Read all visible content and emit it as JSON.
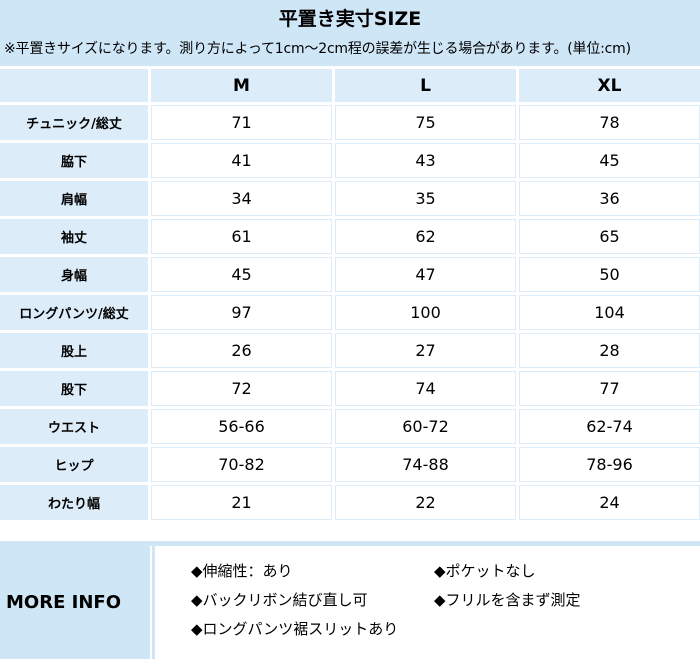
{
  "title": "平置き実寸SIZE",
  "note": "※平置きサイズになります。測り方によって1cm〜2cm程の誤差が生じる場合があります。(単位:cm)",
  "columns": [
    "M",
    "L",
    "XL"
  ],
  "rows": [
    {
      "label": "チュニック/総丈",
      "values": [
        "71",
        "75",
        "78"
      ]
    },
    {
      "label": "脇下",
      "values": [
        "41",
        "43",
        "45"
      ]
    },
    {
      "label": "肩幅",
      "values": [
        "34",
        "35",
        "36"
      ]
    },
    {
      "label": "袖丈",
      "values": [
        "61",
        "62",
        "65"
      ]
    },
    {
      "label": "身幅",
      "values": [
        "45",
        "47",
        "50"
      ]
    },
    {
      "label": "ロングパンツ/総丈",
      "values": [
        "97",
        "100",
        "104"
      ]
    },
    {
      "label": "股上",
      "values": [
        "26",
        "27",
        "28"
      ]
    },
    {
      "label": "股下",
      "values": [
        "72",
        "74",
        "77"
      ]
    },
    {
      "label": "ウエスト",
      "values": [
        "56-66",
        "60-72",
        "62-74"
      ]
    },
    {
      "label": "ヒップ",
      "values": [
        "70-82",
        "74-88",
        "78-96"
      ]
    },
    {
      "label": "わたり幅",
      "values": [
        "21",
        "22",
        "24"
      ]
    }
  ],
  "more_info": {
    "label": "MORE INFO",
    "items": [
      "◆伸縮性：あり",
      "◆ポケットなし",
      "◆バックリボン結び直し可",
      "◆フリルを含まず測定",
      "◆ロングパンツ裾スリットあり"
    ]
  },
  "colors": {
    "header_bg": "#cfe6f7",
    "cell_label_bg": "#dcecf8",
    "cell_value_bg": "#ffffff"
  }
}
